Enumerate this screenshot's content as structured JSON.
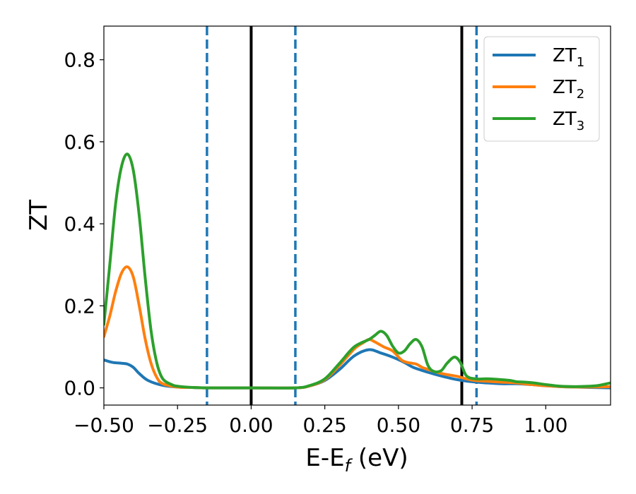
{
  "chart_data": {
    "type": "line",
    "xlabel": {
      "main": "E-E",
      "sub": "f",
      "unit": " (eV)"
    },
    "ylabel": "ZT",
    "xlim": [
      -0.5,
      1.22
    ],
    "ylim": [
      -0.042,
      0.882
    ],
    "x_ticks": [
      -0.5,
      -0.25,
      0.0,
      0.25,
      0.5,
      0.75,
      1.0
    ],
    "x_tick_labels": [
      "−0.50",
      "−0.25",
      "0.00",
      "0.25",
      "0.50",
      "0.75",
      "1.00"
    ],
    "y_ticks": [
      0.0,
      0.2,
      0.4,
      0.6,
      0.8
    ],
    "y_tick_labels": [
      "0.0",
      "0.2",
      "0.4",
      "0.6",
      "0.8"
    ],
    "grid": false,
    "legend_position": "top-right",
    "vlines": [
      {
        "x": -0.15,
        "style": "dashed",
        "color": "#1f77b4"
      },
      {
        "x": 0.0,
        "style": "solid",
        "color": "#000000"
      },
      {
        "x": 0.15,
        "style": "dashed",
        "color": "#1f77b4"
      },
      {
        "x": 0.715,
        "style": "solid",
        "color": "#000000"
      },
      {
        "x": 0.765,
        "style": "dashed",
        "color": "#1f77b4"
      }
    ],
    "series": [
      {
        "name": "ZT",
        "sub": "1",
        "color": "#1f77b4",
        "points": [
          [
            -0.5,
            0.068
          ],
          [
            -0.47,
            0.062
          ],
          [
            -0.44,
            0.06
          ],
          [
            -0.42,
            0.058
          ],
          [
            -0.4,
            0.05
          ],
          [
            -0.38,
            0.035
          ],
          [
            -0.35,
            0.018
          ],
          [
            -0.3,
            0.006
          ],
          [
            -0.25,
            0.002
          ],
          [
            -0.2,
            0.001
          ],
          [
            -0.15,
            0.0
          ],
          [
            0.0,
            0.0
          ],
          [
            0.15,
            0.0
          ],
          [
            0.2,
            0.005
          ],
          [
            0.25,
            0.018
          ],
          [
            0.3,
            0.045
          ],
          [
            0.35,
            0.078
          ],
          [
            0.4,
            0.093
          ],
          [
            0.44,
            0.085
          ],
          [
            0.48,
            0.075
          ],
          [
            0.52,
            0.062
          ],
          [
            0.55,
            0.05
          ],
          [
            0.6,
            0.038
          ],
          [
            0.65,
            0.028
          ],
          [
            0.7,
            0.02
          ],
          [
            0.75,
            0.015
          ],
          [
            0.8,
            0.012
          ],
          [
            0.85,
            0.01
          ],
          [
            0.9,
            0.01
          ],
          [
            0.95,
            0.008
          ],
          [
            1.0,
            0.005
          ],
          [
            1.05,
            0.003
          ],
          [
            1.1,
            0.002
          ],
          [
            1.15,
            0.001
          ],
          [
            1.22,
            0.0
          ]
        ]
      },
      {
        "name": "ZT",
        "sub": "2",
        "color": "#ff7f0e",
        "points": [
          [
            -0.5,
            0.125
          ],
          [
            -0.48,
            0.175
          ],
          [
            -0.46,
            0.235
          ],
          [
            -0.44,
            0.28
          ],
          [
            -0.42,
            0.295
          ],
          [
            -0.4,
            0.27
          ],
          [
            -0.38,
            0.2
          ],
          [
            -0.36,
            0.12
          ],
          [
            -0.34,
            0.06
          ],
          [
            -0.32,
            0.025
          ],
          [
            -0.3,
            0.01
          ],
          [
            -0.25,
            0.002
          ],
          [
            -0.2,
            0.001
          ],
          [
            -0.15,
            0.0
          ],
          [
            0.0,
            0.0
          ],
          [
            0.15,
            0.0
          ],
          [
            0.2,
            0.005
          ],
          [
            0.25,
            0.02
          ],
          [
            0.3,
            0.055
          ],
          [
            0.35,
            0.095
          ],
          [
            0.38,
            0.11
          ],
          [
            0.4,
            0.118
          ],
          [
            0.42,
            0.112
          ],
          [
            0.45,
            0.1
          ],
          [
            0.48,
            0.09
          ],
          [
            0.51,
            0.068
          ],
          [
            0.53,
            0.062
          ],
          [
            0.56,
            0.058
          ],
          [
            0.58,
            0.05
          ],
          [
            0.6,
            0.045
          ],
          [
            0.63,
            0.038
          ],
          [
            0.66,
            0.033
          ],
          [
            0.7,
            0.028
          ],
          [
            0.73,
            0.022
          ],
          [
            0.76,
            0.018
          ],
          [
            0.8,
            0.016
          ],
          [
            0.85,
            0.014
          ],
          [
            0.9,
            0.012
          ],
          [
            0.95,
            0.008
          ],
          [
            1.0,
            0.005
          ],
          [
            1.05,
            0.003
          ],
          [
            1.1,
            0.002
          ],
          [
            1.15,
            0.002
          ],
          [
            1.22,
            0.003
          ]
        ]
      },
      {
        "name": "ZT",
        "sub": "3",
        "color": "#2ca02c",
        "points": [
          [
            -0.5,
            0.155
          ],
          [
            -0.48,
            0.3
          ],
          [
            -0.46,
            0.45
          ],
          [
            -0.44,
            0.54
          ],
          [
            -0.42,
            0.57
          ],
          [
            -0.4,
            0.53
          ],
          [
            -0.38,
            0.42
          ],
          [
            -0.36,
            0.27
          ],
          [
            -0.34,
            0.14
          ],
          [
            -0.32,
            0.06
          ],
          [
            -0.3,
            0.022
          ],
          [
            -0.27,
            0.008
          ],
          [
            -0.25,
            0.004
          ],
          [
            -0.2,
            0.001
          ],
          [
            -0.15,
            0.0
          ],
          [
            0.0,
            0.0
          ],
          [
            0.15,
            0.0
          ],
          [
            0.2,
            0.006
          ],
          [
            0.25,
            0.022
          ],
          [
            0.3,
            0.06
          ],
          [
            0.35,
            0.1
          ],
          [
            0.4,
            0.118
          ],
          [
            0.42,
            0.128
          ],
          [
            0.44,
            0.138
          ],
          [
            0.46,
            0.128
          ],
          [
            0.48,
            0.102
          ],
          [
            0.5,
            0.085
          ],
          [
            0.52,
            0.09
          ],
          [
            0.54,
            0.108
          ],
          [
            0.56,
            0.118
          ],
          [
            0.58,
            0.1
          ],
          [
            0.6,
            0.055
          ],
          [
            0.62,
            0.04
          ],
          [
            0.645,
            0.042
          ],
          [
            0.665,
            0.06
          ],
          [
            0.69,
            0.075
          ],
          [
            0.71,
            0.062
          ],
          [
            0.73,
            0.03
          ],
          [
            0.76,
            0.022
          ],
          [
            0.8,
            0.022
          ],
          [
            0.85,
            0.02
          ],
          [
            0.88,
            0.018
          ],
          [
            0.9,
            0.015
          ],
          [
            0.93,
            0.014
          ],
          [
            0.96,
            0.012
          ],
          [
            1.0,
            0.008
          ],
          [
            1.05,
            0.004
          ],
          [
            1.1,
            0.003
          ],
          [
            1.15,
            0.004
          ],
          [
            1.18,
            0.006
          ],
          [
            1.22,
            0.012
          ]
        ]
      }
    ]
  }
}
